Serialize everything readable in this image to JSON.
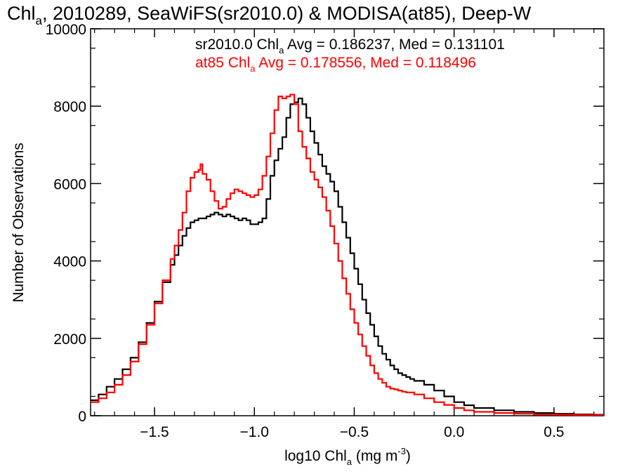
{
  "chart_data": {
    "type": "line",
    "title": {
      "prefix": "Chl",
      "sub": "a",
      "rest": ", 2010289, SeaWiFS(sr2010.0) & MODISA(at85), Deep-W"
    },
    "xlabel": {
      "prefix": "log10 Chl",
      "sub": "a",
      "rest": " (mg m",
      "sup": "-3",
      "end": ")"
    },
    "ylabel": "Number of Observations",
    "xlim": [
      -1.82,
      0.75
    ],
    "ylim": [
      0,
      10000
    ],
    "x_ticks": [
      -1.5,
      -1.0,
      -0.5,
      0.0,
      0.5
    ],
    "x_tick_labels": [
      "−1.5",
      "−1.0",
      "−0.5",
      "0.0",
      "0.5"
    ],
    "y_ticks": [
      0,
      2000,
      4000,
      6000,
      8000,
      10000
    ],
    "y_tick_labels": [
      "0",
      "2000",
      "4000",
      "6000",
      "8000",
      "10000"
    ],
    "grid": false,
    "legend": "top",
    "annotations": [
      {
        "prefix": "sr2010.0 Chl",
        "sub": "a",
        "rest": " Avg = 0.186237, Med = 0.131101",
        "color": "#000000"
      },
      {
        "prefix": "at85 Chl",
        "sub": "a",
        "rest": " Avg = 0.178556, Med = 0.118496",
        "color": "#ff0000"
      }
    ],
    "series": [
      {
        "name": "sr2010.0",
        "color": "#000000",
        "step": true,
        "x": [
          -1.82,
          -1.78,
          -1.74,
          -1.7,
          -1.66,
          -1.62,
          -1.58,
          -1.54,
          -1.5,
          -1.46,
          -1.42,
          -1.4,
          -1.38,
          -1.36,
          -1.34,
          -1.32,
          -1.3,
          -1.28,
          -1.26,
          -1.24,
          -1.22,
          -1.2,
          -1.18,
          -1.16,
          -1.14,
          -1.12,
          -1.1,
          -1.08,
          -1.06,
          -1.04,
          -1.02,
          -1.0,
          -0.98,
          -0.96,
          -0.94,
          -0.92,
          -0.9,
          -0.88,
          -0.86,
          -0.84,
          -0.82,
          -0.8,
          -0.78,
          -0.76,
          -0.74,
          -0.72,
          -0.7,
          -0.68,
          -0.66,
          -0.64,
          -0.62,
          -0.6,
          -0.58,
          -0.56,
          -0.54,
          -0.52,
          -0.5,
          -0.48,
          -0.46,
          -0.44,
          -0.42,
          -0.4,
          -0.38,
          -0.36,
          -0.34,
          -0.32,
          -0.3,
          -0.28,
          -0.26,
          -0.24,
          -0.22,
          -0.2,
          -0.15,
          -0.1,
          -0.05,
          0.0,
          0.05,
          0.1,
          0.2,
          0.3,
          0.4,
          0.5,
          0.6,
          0.7,
          0.75
        ],
        "y": [
          400,
          550,
          750,
          950,
          1200,
          1500,
          1900,
          2400,
          2950,
          3450,
          3900,
          4150,
          4400,
          4650,
          4850,
          5000,
          5050,
          5100,
          5100,
          5150,
          5200,
          5250,
          5200,
          5150,
          5200,
          5150,
          5100,
          5050,
          5100,
          5050,
          4950,
          4950,
          5000,
          5100,
          5600,
          6200,
          6600,
          6900,
          7200,
          7700,
          8050,
          8100,
          8200,
          8050,
          7700,
          7350,
          7050,
          6750,
          6450,
          6250,
          6050,
          5800,
          5400,
          5000,
          4600,
          4200,
          3800,
          3400,
          3000,
          2650,
          2350,
          2050,
          1800,
          1600,
          1450,
          1300,
          1200,
          1100,
          1050,
          1000,
          950,
          900,
          800,
          650,
          500,
          350,
          270,
          200,
          140,
          100,
          70,
          50,
          35,
          25,
          20
        ]
      },
      {
        "name": "at85",
        "color": "#ff0000",
        "step": true,
        "x": [
          -1.82,
          -1.78,
          -1.74,
          -1.7,
          -1.66,
          -1.62,
          -1.58,
          -1.54,
          -1.5,
          -1.46,
          -1.42,
          -1.4,
          -1.38,
          -1.36,
          -1.34,
          -1.32,
          -1.3,
          -1.28,
          -1.27,
          -1.26,
          -1.24,
          -1.22,
          -1.2,
          -1.18,
          -1.16,
          -1.14,
          -1.12,
          -1.1,
          -1.08,
          -1.06,
          -1.04,
          -1.02,
          -1.0,
          -0.98,
          -0.96,
          -0.94,
          -0.92,
          -0.9,
          -0.88,
          -0.86,
          -0.84,
          -0.82,
          -0.8,
          -0.78,
          -0.76,
          -0.74,
          -0.72,
          -0.7,
          -0.68,
          -0.66,
          -0.64,
          -0.62,
          -0.6,
          -0.58,
          -0.56,
          -0.54,
          -0.52,
          -0.5,
          -0.48,
          -0.46,
          -0.44,
          -0.42,
          -0.4,
          -0.38,
          -0.36,
          -0.34,
          -0.32,
          -0.3,
          -0.28,
          -0.26,
          -0.24,
          -0.22,
          -0.2,
          -0.15,
          -0.1,
          -0.05,
          0.0,
          0.05,
          0.1,
          0.2,
          0.3,
          0.4,
          0.5,
          0.6,
          0.7,
          0.75
        ],
        "y": [
          350,
          450,
          600,
          800,
          1050,
          1400,
          1850,
          2350,
          2900,
          3500,
          4050,
          4400,
          4800,
          5250,
          5800,
          6150,
          6300,
          6350,
          6500,
          6250,
          6100,
          5800,
          5550,
          5350,
          5400,
          5600,
          5750,
          5850,
          5800,
          5750,
          5700,
          5650,
          5700,
          5850,
          6200,
          6700,
          7300,
          7900,
          8250,
          8200,
          8250,
          8300,
          8050,
          7350,
          6950,
          6650,
          6300,
          6100,
          5900,
          5650,
          5300,
          4900,
          4450,
          4000,
          3550,
          3150,
          2750,
          2400,
          2100,
          1800,
          1550,
          1300,
          1100,
          950,
          850,
          750,
          700,
          680,
          650,
          620,
          600,
          600,
          550,
          450,
          350,
          280,
          200,
          140,
          100,
          70,
          50,
          35,
          25,
          20,
          15,
          10
        ]
      }
    ]
  }
}
